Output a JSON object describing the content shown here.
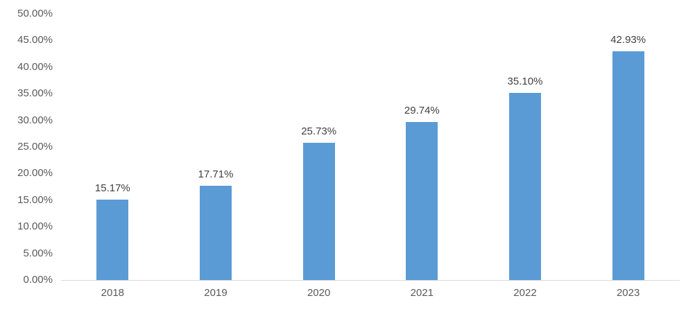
{
  "chart_data": {
    "type": "bar",
    "title": "",
    "xlabel": "",
    "ylabel": "",
    "categories": [
      "2018",
      "2019",
      "2020",
      "2021",
      "2022",
      "2023"
    ],
    "values": [
      15.17,
      17.71,
      25.73,
      29.74,
      35.1,
      42.93
    ],
    "data_labels": [
      "15.17%",
      "17.71%",
      "25.73%",
      "29.74%",
      "35.10%",
      "42.93%"
    ],
    "ylim": [
      0,
      50
    ],
    "y_tick_values": [
      0,
      5,
      10,
      15,
      20,
      25,
      30,
      35,
      40,
      45,
      50
    ],
    "y_tick_labels": [
      "0.00%",
      "5.00%",
      "10.00%",
      "15.00%",
      "20.00%",
      "25.00%",
      "30.00%",
      "35.00%",
      "40.00%",
      "45.00%",
      "50.00%"
    ],
    "grid": false,
    "legend": false,
    "colors": {
      "bar": "#5b9bd5",
      "axis_line": "#d9d9d9",
      "axis_tick_text": "#595959",
      "data_label_text": "#404040",
      "background": "#ffffff"
    }
  }
}
